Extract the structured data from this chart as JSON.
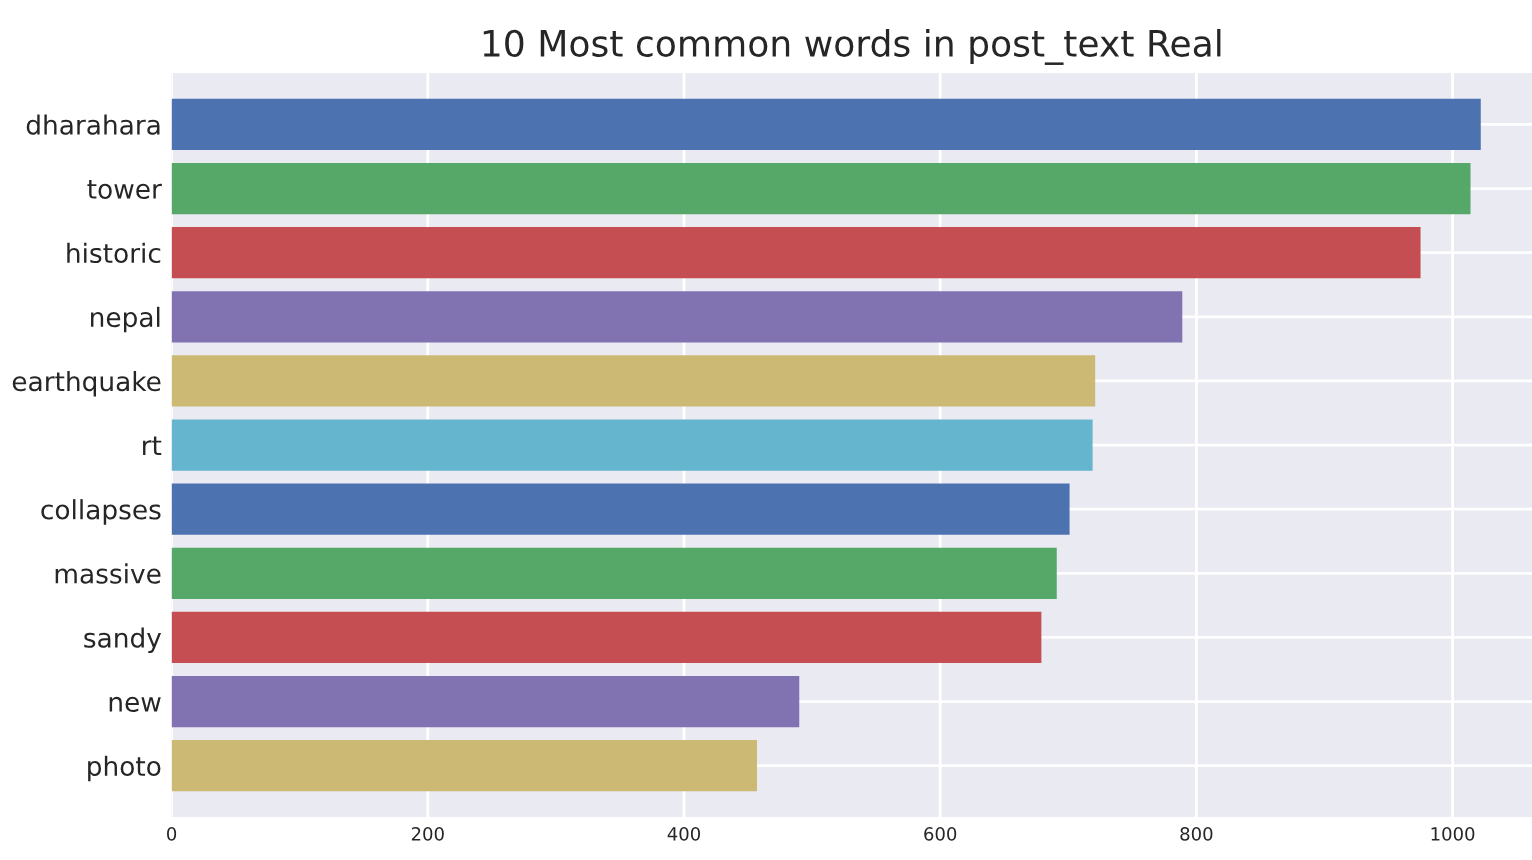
{
  "chart_data": {
    "type": "bar",
    "orientation": "horizontal",
    "title": "10 Most common words in post_text Real",
    "categories": [
      "dharahara",
      "tower",
      "historic",
      "nepal",
      "earthquake",
      "rt",
      "collapses",
      "massive",
      "sandy",
      "new",
      "photo"
    ],
    "values": [
      1022,
      1014,
      975,
      789,
      721,
      719,
      701,
      691,
      679,
      490,
      457
    ],
    "colors": [
      "#4c72b0",
      "#55a868",
      "#c44e52",
      "#8172b2",
      "#ccb974",
      "#64b5cd",
      "#4c72b0",
      "#55a868",
      "#c44e52",
      "#8172b2",
      "#ccb974"
    ],
    "xlim": [
      0,
      1062
    ],
    "xticks": [
      0,
      200,
      400,
      600,
      800,
      1000
    ],
    "grid": true
  }
}
